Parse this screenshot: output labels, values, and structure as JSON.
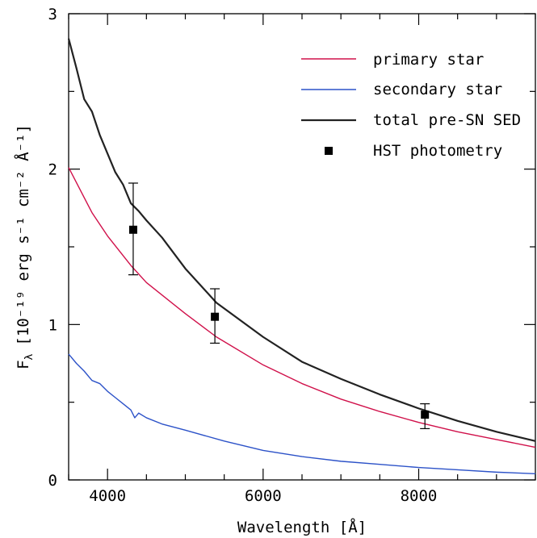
{
  "chart_data": {
    "type": "line",
    "xlabel": "Wavelength [Å]",
    "ylabel_main": "F",
    "ylabel_sub": "λ",
    "ylabel_units": "[10⁻¹⁹ erg s⁻¹ cm⁻² Å⁻¹]",
    "xlim": [
      3500,
      9500
    ],
    "ylim": [
      0,
      3
    ],
    "x_ticks": [
      {
        "value": 4000,
        "label": "4000"
      },
      {
        "value": 6000,
        "label": "6000"
      },
      {
        "value": 8000,
        "label": "8000"
      }
    ],
    "x_minor_step": 500,
    "y_ticks": [
      {
        "value": 0,
        "label": "0"
      },
      {
        "value": 1,
        "label": "1"
      },
      {
        "value": 2,
        "label": "2"
      },
      {
        "value": 3,
        "label": "3"
      }
    ],
    "y_minor_step": 0.5,
    "grid": false,
    "legend_position": "top-right",
    "series": [
      {
        "name": "primary star",
        "color": "#d0104a",
        "x": [
          3500,
          3800,
          4000,
          4300,
          4500,
          5000,
          5400,
          6000,
          6500,
          7000,
          7500,
          8000,
          8500,
          9000,
          9500
        ],
        "y": [
          2.01,
          1.72,
          1.57,
          1.38,
          1.27,
          1.07,
          0.92,
          0.74,
          0.62,
          0.52,
          0.44,
          0.37,
          0.31,
          0.26,
          0.21
        ]
      },
      {
        "name": "secondary star",
        "color": "#2c52c8",
        "x": [
          3500,
          3600,
          3700,
          3800,
          3900,
          4000,
          4100,
          4200,
          4300,
          4350,
          4400,
          4500,
          4700,
          5000,
          5500,
          6000,
          6500,
          7000,
          7500,
          8000,
          8500,
          9000,
          9500
        ],
        "y": [
          0.81,
          0.75,
          0.7,
          0.64,
          0.62,
          0.57,
          0.53,
          0.49,
          0.45,
          0.4,
          0.43,
          0.4,
          0.36,
          0.32,
          0.25,
          0.19,
          0.15,
          0.12,
          0.1,
          0.08,
          0.065,
          0.05,
          0.04
        ]
      },
      {
        "name": "total pre-SN SED",
        "color": "#222222",
        "x": [
          3500,
          3600,
          3700,
          3800,
          3900,
          4000,
          4100,
          4200,
          4300,
          4400,
          4500,
          4700,
          5000,
          5400,
          6000,
          6500,
          7000,
          7500,
          8000,
          8500,
          9000,
          9500
        ],
        "y": [
          2.84,
          2.65,
          2.45,
          2.37,
          2.22,
          2.1,
          1.98,
          1.9,
          1.78,
          1.73,
          1.67,
          1.56,
          1.36,
          1.14,
          0.92,
          0.76,
          0.65,
          0.55,
          0.46,
          0.38,
          0.31,
          0.25
        ]
      }
    ],
    "points": {
      "name": "HST photometry",
      "color": "#000000",
      "data": [
        {
          "x": 4330,
          "y": 1.61,
          "yerr_low": 1.32,
          "yerr_high": 1.91
        },
        {
          "x": 5380,
          "y": 1.05,
          "yerr_low": 0.88,
          "yerr_high": 1.23
        },
        {
          "x": 8080,
          "y": 0.42,
          "yerr_low": 0.33,
          "yerr_high": 0.49
        }
      ]
    }
  }
}
